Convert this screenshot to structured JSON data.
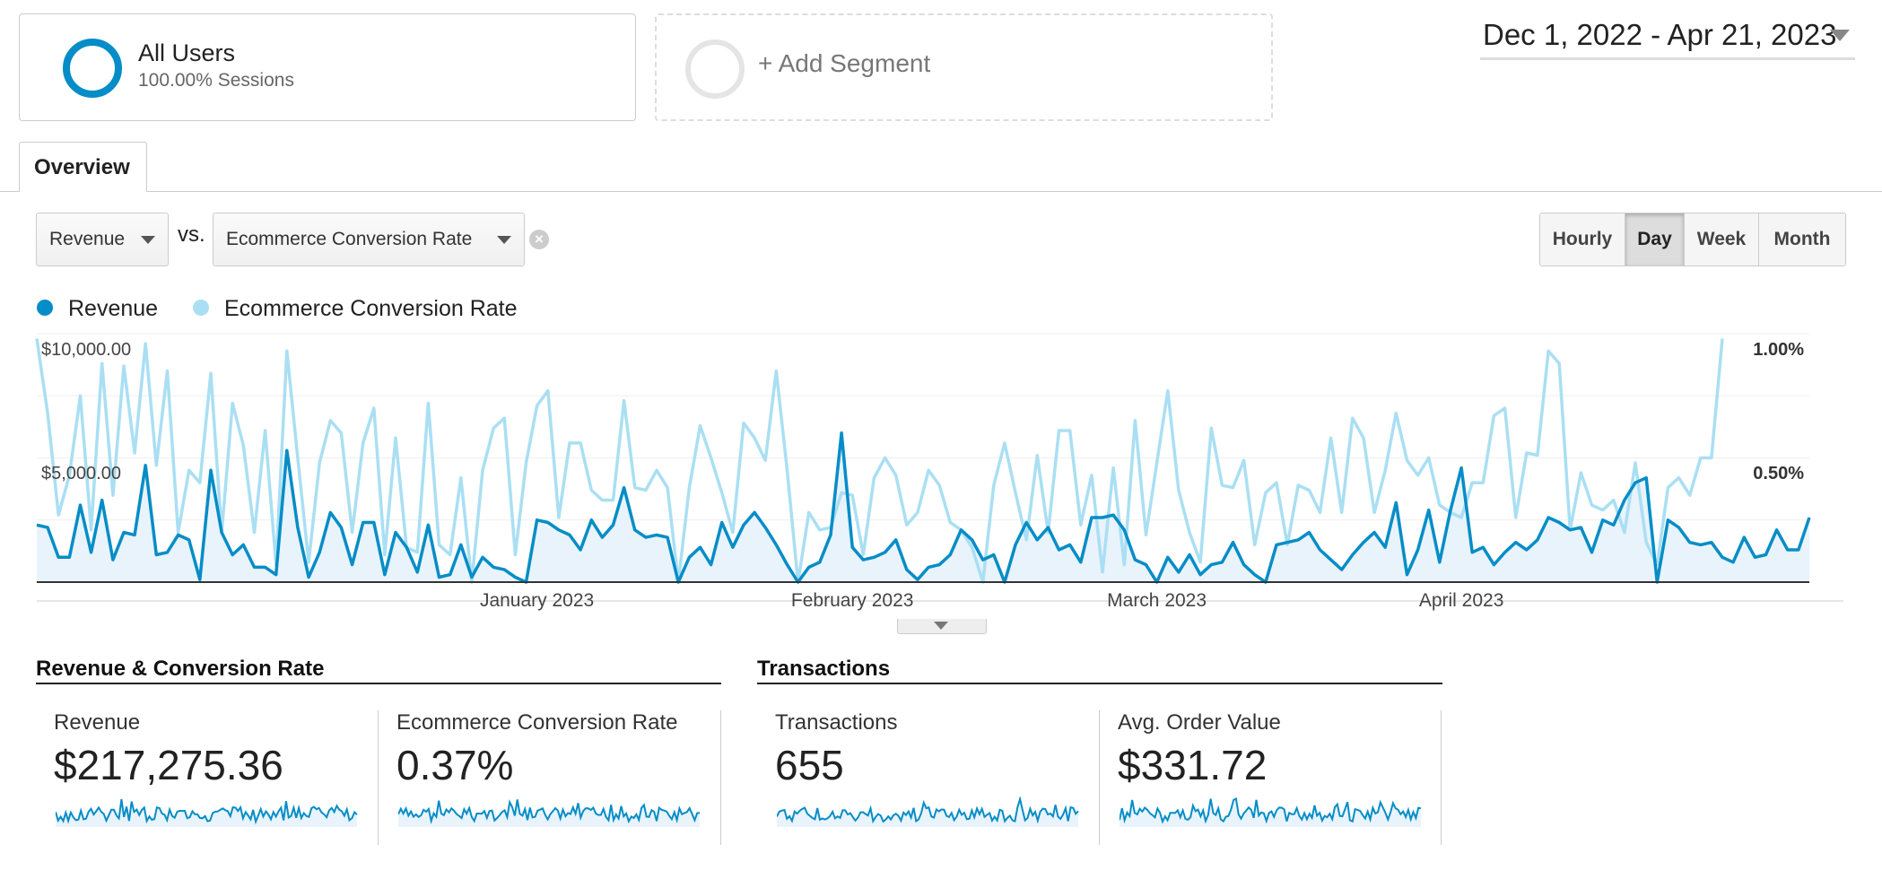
{
  "segments": {
    "active": {
      "title": "All Users",
      "subtitle": "100.00% Sessions"
    },
    "add_label": "+ Add Segment"
  },
  "date_range": "Dec 1, 2022 - Apr 21, 2023",
  "tabs": [
    {
      "label": "Overview"
    }
  ],
  "metric_selector": {
    "primary": "Revenue",
    "vs_label": "vs.",
    "secondary": "Ecommerce Conversion Rate"
  },
  "time_toggle": {
    "options": [
      "Hourly",
      "Day",
      "Week",
      "Month"
    ],
    "selected": "Day"
  },
  "colors": {
    "revenue": "#058dc7",
    "conversion": "#aadff3",
    "area_fill": "#e9f3fb"
  },
  "legend": [
    {
      "label": "Revenue",
      "color": "#058dc7"
    },
    {
      "label": "Ecommerce Conversion Rate",
      "color": "#aadff3"
    }
  ],
  "chart_data": {
    "type": "line",
    "x_range": [
      "2022-12-01",
      "2023-04-21"
    ],
    "x_tick_labels": [
      "January 2023",
      "February 2023",
      "March 2023",
      "April 2023"
    ],
    "y_left": {
      "ticks": [
        "$10,000.00",
        "$5,000.00"
      ],
      "range": [
        0,
        10000
      ]
    },
    "y_right": {
      "ticks": [
        "1.00%",
        "0.50%"
      ],
      "range": [
        0,
        1.0
      ]
    },
    "grid": true,
    "series": [
      {
        "name": "Revenue",
        "axis": "left",
        "values": [
          2300,
          2200,
          1000,
          1000,
          3100,
          1200,
          3300,
          900,
          2000,
          1900,
          4700,
          1100,
          1200,
          1900,
          1700,
          100,
          4500,
          2000,
          1100,
          1500,
          600,
          600,
          300,
          5300,
          2200,
          200,
          1200,
          2800,
          2200,
          700,
          2400,
          2400,
          300,
          2000,
          1400,
          400,
          2300,
          200,
          300,
          1500,
          200,
          1000,
          600,
          500,
          200,
          0,
          2500,
          2400,
          2100,
          1900,
          1300,
          2500,
          1800,
          2300,
          3800,
          2100,
          1800,
          1900,
          1800,
          0,
          1000,
          1400,
          700,
          2400,
          1400,
          2300,
          2800,
          2200,
          1500,
          700,
          0,
          600,
          800,
          1900,
          6000,
          1400,
          900,
          1000,
          1200,
          1700,
          500,
          100,
          600,
          700,
          1100,
          2100,
          1700,
          900,
          1100,
          0,
          1500,
          2400,
          1700,
          2200,
          1300,
          1500,
          800,
          2600,
          2600,
          2700,
          2100,
          900,
          700,
          0,
          1000,
          400,
          1100,
          300,
          700,
          800,
          1600,
          700,
          300,
          0,
          1500,
          1600,
          1700,
          2000,
          1300,
          900,
          500,
          1100,
          1600,
          2000,
          1400,
          3200,
          300,
          1300,
          2900,
          800,
          2900,
          4600,
          1200,
          1400,
          700,
          1200,
          1600,
          1300,
          1700,
          2600,
          2400,
          2100,
          2200,
          1200,
          2500,
          2300,
          3300,
          4000,
          4200,
          0,
          2500,
          2200,
          1600,
          1500,
          1600,
          1000,
          800,
          1800,
          1000,
          1100,
          2100,
          1300,
          1300,
          2600
        ]
      },
      {
        "name": "Ecommerce Conversion Rate",
        "axis": "right",
        "values": [
          0.98,
          0.68,
          0.27,
          0.43,
          0.75,
          0.21,
          0.88,
          0.35,
          0.87,
          0.52,
          0.96,
          0.47,
          0.85,
          0.2,
          0.45,
          0.4,
          0.84,
          0.2,
          0.72,
          0.55,
          0.2,
          0.61,
          0.07,
          0.93,
          0.5,
          0.08,
          0.48,
          0.65,
          0.6,
          0.2,
          0.56,
          0.7,
          0.11,
          0.58,
          0.14,
          0.12,
          0.72,
          0.15,
          0.11,
          0.42,
          0.0,
          0.45,
          0.62,
          0.66,
          0.11,
          0.48,
          0.71,
          0.77,
          0.26,
          0.56,
          0.56,
          0.37,
          0.33,
          0.33,
          0.73,
          0.38,
          0.37,
          0.45,
          0.38,
          0.0,
          0.38,
          0.63,
          0.5,
          0.36,
          0.2,
          0.64,
          0.58,
          0.49,
          0.85,
          0.45,
          0.0,
          0.28,
          0.21,
          0.22,
          0.36,
          0.35,
          0.11,
          0.42,
          0.5,
          0.43,
          0.23,
          0.28,
          0.45,
          0.39,
          0.24,
          0.21,
          0.14,
          0.0,
          0.39,
          0.56,
          0.36,
          0.17,
          0.51,
          0.2,
          0.61,
          0.61,
          0.23,
          0.43,
          0.04,
          0.46,
          0.07,
          0.65,
          0.19,
          0.48,
          0.77,
          0.37,
          0.2,
          0.08,
          0.62,
          0.39,
          0.38,
          0.49,
          0.15,
          0.36,
          0.4,
          0.15,
          0.39,
          0.37,
          0.28,
          0.58,
          0.28,
          0.66,
          0.58,
          0.28,
          0.45,
          0.68,
          0.49,
          0.43,
          0.5,
          0.31,
          0.28,
          0.26,
          0.4,
          0.4,
          0.67,
          0.7,
          0.26,
          0.52,
          0.51,
          0.93,
          0.88,
          0.21,
          0.44,
          0.31,
          0.29,
          0.33,
          0.2,
          0.48,
          0.16,
          0.07,
          0.38,
          0.42,
          0.35,
          0.5,
          0.5,
          0.98
        ]
      }
    ]
  },
  "summary": {
    "groups": [
      {
        "title": "Revenue & Conversion Rate"
      },
      {
        "title": "Transactions"
      }
    ],
    "metrics": [
      {
        "label": "Revenue",
        "value": "$217,275.36"
      },
      {
        "label": "Ecommerce Conversion Rate",
        "value": "0.37%"
      },
      {
        "label": "Transactions",
        "value": "655"
      },
      {
        "label": "Avg. Order Value",
        "value": "$331.72"
      }
    ]
  }
}
